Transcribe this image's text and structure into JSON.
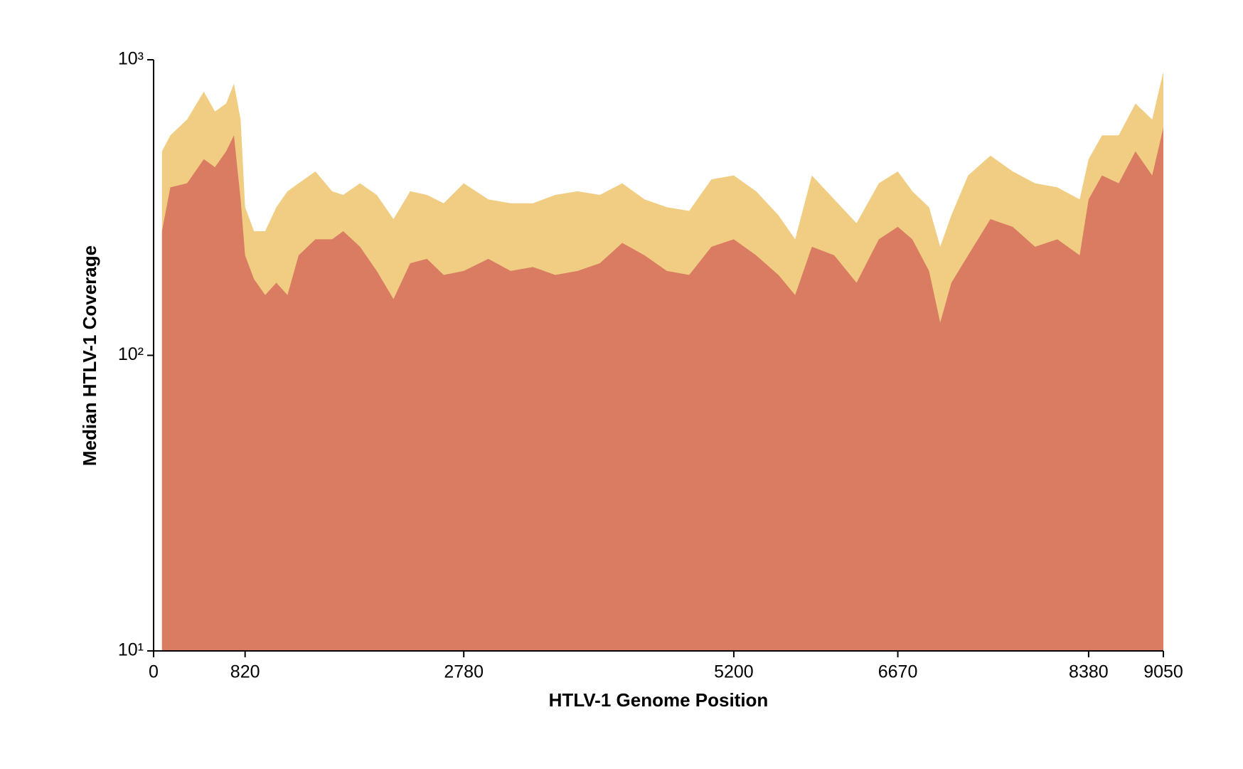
{
  "chart_data": {
    "type": "area",
    "xlabel": "HTLV-1 Genome Position",
    "ylabel": "Median HTLV-1 Coverage",
    "x": [
      75,
      150,
      300,
      450,
      550,
      650,
      720,
      780,
      820,
      900,
      1000,
      1100,
      1200,
      1300,
      1450,
      1600,
      1700,
      1850,
      2000,
      2150,
      2300,
      2450,
      2600,
      2780,
      3000,
      3200,
      3400,
      3600,
      3800,
      4000,
      4200,
      4400,
      4600,
      4800,
      5000,
      5200,
      5400,
      5600,
      5750,
      5900,
      6100,
      6300,
      6500,
      6670,
      6800,
      6950,
      7050,
      7150,
      7300,
      7500,
      7700,
      7900,
      8100,
      8300,
      8380,
      8500,
      8650,
      8800,
      8950,
      9050
    ],
    "series": [
      {
        "color": "#f0cd82",
        "values": [
          490,
          555,
          628,
          780,
          668,
          711,
          830,
          628,
          317,
          263,
          263,
          317,
          359,
          382,
          419,
          359,
          349,
          382,
          349,
          289,
          359,
          349,
          327,
          382,
          337,
          327,
          327,
          349,
          359,
          349,
          382,
          337,
          317,
          308,
          394,
          406,
          359,
          298,
          247,
          406,
          337,
          280,
          382,
          419,
          359,
          317,
          233,
          298,
          406,
          474,
          419,
          382,
          370,
          337,
          461,
          555,
          555,
          711,
          628,
          911
        ]
      },
      {
        "color": "#d97c62",
        "values": [
          263,
          370,
          382,
          461,
          433,
          490,
          555,
          337,
          218,
          181,
          160,
          176,
          160,
          218,
          247,
          247,
          263,
          233,
          193,
          155,
          205,
          212,
          187,
          193,
          212,
          193,
          199,
          187,
          193,
          205,
          240,
          218,
          193,
          187,
          233,
          247,
          218,
          187,
          160,
          233,
          218,
          176,
          247,
          272,
          247,
          193,
          129,
          176,
          218,
          289,
          272,
          233,
          247,
          218,
          337,
          406,
          382,
          490,
          406,
          590
        ]
      }
    ],
    "xlim": [
      0,
      9050
    ],
    "xticks": [
      0,
      820,
      2780,
      5200,
      6670,
      8380,
      9050
    ],
    "ylim": [
      10,
      1000
    ],
    "yticks": [
      {
        "value": 10,
        "label": "10¹"
      },
      {
        "value": 100,
        "label": "10²"
      },
      {
        "value": 1000,
        "label": "10³"
      }
    ],
    "log_y": true
  }
}
